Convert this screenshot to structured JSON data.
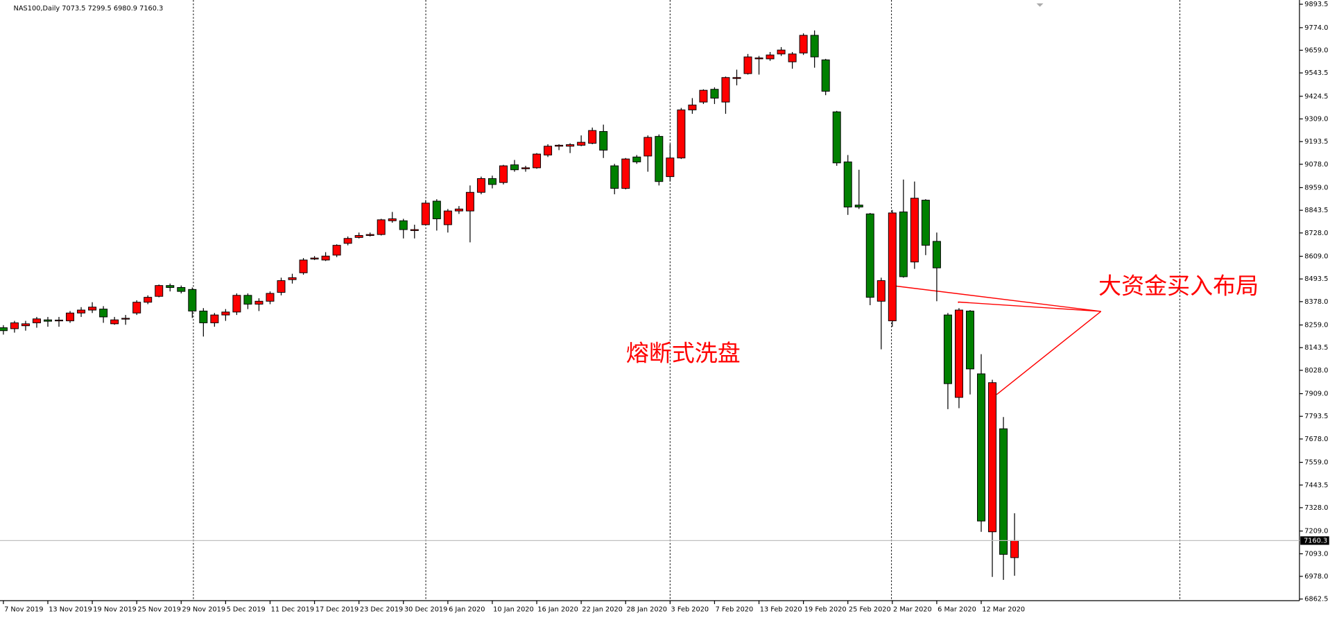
{
  "chart_data": {
    "type": "candlestick",
    "header": "NAS100,Daily  7073.5 7299.5 6980.9 7160.3",
    "annotations": [
      "熔断式洗盘",
      "大资金买入布局"
    ],
    "categories": [
      "7 Nov 2019",
      null,
      null,
      null,
      "13 Nov 2019",
      null,
      null,
      null,
      "19 Nov 2019",
      null,
      null,
      null,
      "25 Nov 2019",
      null,
      null,
      null,
      "29 Nov 2019",
      null,
      null,
      null,
      "5 Dec 2019",
      null,
      null,
      null,
      "11 Dec 2019",
      null,
      null,
      null,
      "17 Dec 2019",
      null,
      null,
      null,
      "23 Dec 2019",
      null,
      null,
      null,
      "30 Dec 2019",
      null,
      null,
      null,
      "6 Jan 2020",
      null,
      null,
      null,
      "10 Jan 2020",
      null,
      null,
      null,
      "16 Jan 2020",
      null,
      null,
      null,
      "22 Jan 2020",
      null,
      null,
      null,
      "28 Jan 2020",
      null,
      null,
      null,
      "3 Feb 2020",
      null,
      null,
      null,
      "7 Feb 2020",
      null,
      null,
      null,
      "13 Feb 2020",
      null,
      null,
      null,
      "19 Feb 2020",
      null,
      null,
      null,
      "25 Feb 2020",
      null,
      null,
      null,
      "2 Mar 2020",
      null,
      null,
      null,
      "6 Mar 2020",
      null,
      null,
      null,
      "12 Mar 2020",
      null,
      null,
      null
    ],
    "open": [
      8245,
      8240,
      8255,
      8270,
      8285,
      8280,
      8280,
      8320,
      8335,
      8340,
      8265,
      8290,
      8320,
      8375,
      8405,
      8460,
      8450,
      8440,
      8330,
      8270,
      8310,
      8325,
      8410,
      8365,
      8380,
      8425,
      8490,
      8525,
      8595,
      8590,
      8615,
      8675,
      8705,
      8715,
      8720,
      8790,
      8790,
      8740,
      8770,
      8890,
      8770,
      8840,
      8840,
      8935,
      9005,
      8985,
      9075,
      9055,
      9060,
      9125,
      9170,
      9170,
      9175,
      9185,
      9245,
      9070,
      8955,
      9115,
      9120,
      9220,
      9015,
      9110,
      9355,
      9395,
      9460,
      9395,
      9515,
      9540,
      9615,
      9615,
      9640,
      9600,
      9645,
      9735,
      9610,
      9345,
      9090,
      8870,
      8825,
      8380,
      8280,
      8835,
      8580,
      8895,
      8685,
      8310,
      7890,
      8330,
      8010,
      7205,
      7730,
      7073.5
    ],
    "high": [
      8258,
      8280,
      8280,
      8300,
      8300,
      8300,
      8330,
      8350,
      8375,
      8355,
      8300,
      8310,
      8385,
      8410,
      8465,
      8470,
      8460,
      8450,
      8345,
      8320,
      8340,
      8420,
      8420,
      8395,
      8430,
      8500,
      8520,
      8600,
      8610,
      8630,
      8670,
      8710,
      8730,
      8730,
      8800,
      8835,
      8800,
      8770,
      8895,
      8900,
      8850,
      8865,
      8970,
      9015,
      9020,
      9075,
      9100,
      9070,
      9135,
      9180,
      9180,
      9185,
      9225,
      9265,
      9280,
      9080,
      9110,
      9125,
      9225,
      9230,
      9180,
      9365,
      9415,
      9460,
      9470,
      9525,
      9560,
      9640,
      9630,
      9650,
      9675,
      9650,
      9745,
      9760,
      9615,
      9350,
      9125,
      9050,
      8830,
      8500,
      8845,
      9000,
      8990,
      8900,
      8730,
      8320,
      8345,
      8335,
      8110,
      7980,
      7790,
      7299.5
    ],
    "low": [
      8210,
      8220,
      8230,
      8245,
      8250,
      8250,
      8270,
      8300,
      8320,
      8270,
      8260,
      8260,
      8310,
      8365,
      8400,
      8430,
      8420,
      8295,
      8200,
      8250,
      8280,
      8310,
      8340,
      8330,
      8365,
      8410,
      8470,
      8515,
      8590,
      8585,
      8605,
      8665,
      8700,
      8710,
      8715,
      8780,
      8700,
      8700,
      8765,
      8740,
      8730,
      8825,
      8680,
      8925,
      8955,
      8975,
      9040,
      9040,
      9055,
      9115,
      9150,
      9135,
      9170,
      9180,
      9110,
      8925,
      8950,
      9080,
      9040,
      8970,
      8990,
      9105,
      9335,
      9385,
      9385,
      9335,
      9480,
      9535,
      9535,
      9605,
      9630,
      9565,
      9635,
      9570,
      9430,
      9070,
      8820,
      8850,
      8360,
      8135,
      8250,
      8500,
      8545,
      8615,
      8380,
      7830,
      7835,
      7905,
      7205,
      6975,
      6960,
      6980.9
    ],
    "close": [
      8230,
      8270,
      8265,
      8290,
      8278,
      8284,
      8320,
      8335,
      8350,
      8300,
      8285,
      8293,
      8375,
      8400,
      8460,
      8450,
      8430,
      8330,
      8270,
      8310,
      8325,
      8410,
      8365,
      8380,
      8420,
      8485,
      8500,
      8590,
      8600,
      8610,
      8665,
      8700,
      8715,
      8720,
      8795,
      8800,
      8745,
      8745,
      8880,
      8800,
      8840,
      8850,
      8935,
      9005,
      8975,
      9070,
      9050,
      9060,
      9130,
      9170,
      9175,
      9178,
      9190,
      9250,
      9150,
      8955,
      9105,
      9090,
      9215,
      8990,
      9110,
      9355,
      9380,
      9455,
      9415,
      9520,
      9520,
      9625,
      9620,
      9635,
      9660,
      9640,
      9735,
      9625,
      9450,
      9085,
      8860,
      8860,
      8400,
      8485,
      8830,
      8505,
      8905,
      8665,
      8550,
      7960,
      8335,
      8035,
      7260,
      7965,
      7090,
      7160.3
    ],
    "up_color": "#ff0000",
    "down_color": "#008000",
    "last_price": 7160.3,
    "ylim": [
      6854,
      9915
    ],
    "yticks": [
      9893.5,
      {
        "value": 9774,
        "label": "9774.0"
      },
      {
        "value": 9659,
        "label": "9659.0"
      },
      9543.5,
      9424.5,
      {
        "value": 9309,
        "label": "9309.0"
      },
      9193.5,
      {
        "value": 9078,
        "label": "9078.0"
      },
      {
        "value": 8959,
        "label": "8959.0"
      },
      8843.5,
      {
        "value": 8728,
        "label": "8728.0"
      },
      {
        "value": 8609,
        "label": "8609.0"
      },
      8493.5,
      {
        "value": 8378,
        "label": "8378.0"
      },
      {
        "value": 8259,
        "label": "8259.0"
      },
      8143.5,
      {
        "value": 8028,
        "label": "8028.0"
      },
      {
        "value": 7909,
        "label": "7909.0"
      },
      7793.5,
      {
        "value": 7678,
        "label": "7678.0"
      },
      {
        "value": 7559,
        "label": "7559.0"
      },
      7443.5,
      {
        "value": 7328,
        "label": "7328.0"
      },
      {
        "value": 7209,
        "label": "7209.0"
      },
      {
        "value": 7093,
        "label": "7093.0"
      },
      {
        "value": 6978,
        "label": "6978.0"
      },
      6862.5
    ]
  }
}
